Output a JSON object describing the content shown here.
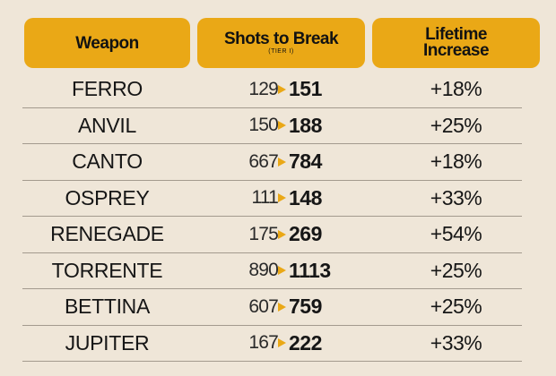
{
  "headers": {
    "weapon": "Weapon",
    "shots_title": "Shots to Break",
    "shots_sub": "(TIER I)",
    "lifetime_line1": "Lifetime",
    "lifetime_line2": "Increase"
  },
  "colors": {
    "accent": "#eaa816",
    "background": "#efe6d8",
    "text": "#161616",
    "divider": "#a39a8e"
  },
  "rows": [
    {
      "weapon": "FERRO",
      "before": "129",
      "after": "151",
      "increase": "+18%"
    },
    {
      "weapon": "ANVIL",
      "before": "150",
      "after": "188",
      "increase": "+25%"
    },
    {
      "weapon": "CANTO",
      "before": "667",
      "after": "784",
      "increase": "+18%"
    },
    {
      "weapon": "OSPREY",
      "before": "111",
      "after": "148",
      "increase": "+33%"
    },
    {
      "weapon": "RENEGADE",
      "before": "175",
      "after": "269",
      "increase": "+54%"
    },
    {
      "weapon": "TORRENTE",
      "before": "890",
      "after": "1113",
      "increase": "+25%"
    },
    {
      "weapon": "BETTINA",
      "before": "607",
      "after": "759",
      "increase": "+25%"
    },
    {
      "weapon": "JUPITER",
      "before": "167",
      "after": "222",
      "increase": "+33%"
    }
  ]
}
